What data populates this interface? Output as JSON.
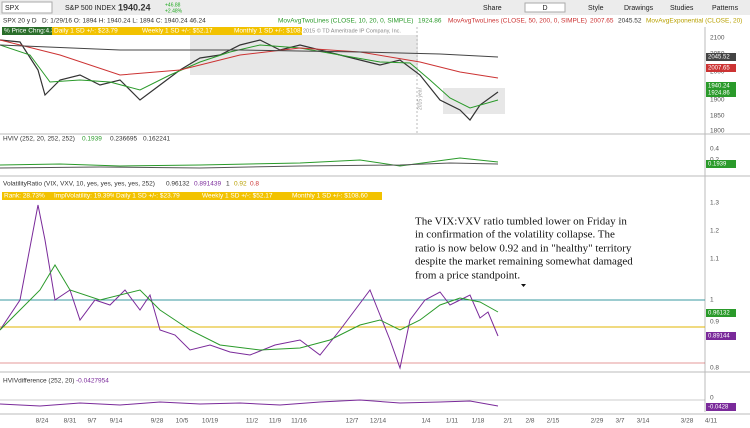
{
  "toolbar": {
    "symbol": "SPX",
    "name": "S&P 500 INDEX",
    "last": "1940.24",
    "change": "+46.88",
    "change_pct": "+2.48%",
    "timeframe": "D",
    "buttons": [
      "Share",
      "Style",
      "Drawings",
      "Studies",
      "Patterns"
    ]
  },
  "info": {
    "chart": "SPX 20 y D",
    "ohlc": "D: 1/29/16  O: 1894  H: 1940.24  L: 1894  C: 1940.24  46.24",
    "studies": [
      {
        "name": "MovAvgTwoLines (CLOSE, 10, 20, 0, SIMPLE)",
        "values": [
          "1924.86"
        ]
      },
      {
        "name": "MovAvgTwoLines (CLOSE, 50, 200, 0, SIMPLE)",
        "values": [
          "2007.65",
          "2045.52"
        ]
      },
      {
        "name": "MovAvgExponential (CLOSE, 20)",
        "values": []
      }
    ]
  },
  "price_panel": {
    "labels": [
      "% Price Chng:4.35",
      "Daily 1 SD +/-: $23.79",
      "Weekly 1 SD +/-: $52.17",
      "Monthly 1 SD +/-: $108.60"
    ],
    "copyright": "2015 © TD Ameritrade IP Company, Inc.",
    "axis": [
      "2100",
      "2050",
      "2000",
      "1950",
      "1900",
      "1850",
      "1800"
    ],
    "tags": [
      "2045.52",
      "2007.65",
      "1940.24",
      "1924.86"
    ],
    "marker": "2015 year"
  },
  "hviv_panel": {
    "title": "HVIV (252, 20, 252, 252)",
    "values": [
      "0.1939",
      "0.236695",
      "0.162241"
    ],
    "axis": [
      "0.4",
      "0.2"
    ],
    "tag": "0.1939"
  },
  "ratio_panel": {
    "title": "VolatilityRatio (VIX, VXV, 10, yes, yes, yes, yes, 252)",
    "values": [
      "0.96132",
      "0.891439",
      "1",
      "0.92",
      "0.8"
    ],
    "labels": [
      "Rank: 28.73%",
      "ImplVolatility: 19.39%",
      "Daily 1 SD +/-: $23.79",
      "Weekly 1 SD +/-: $52.17",
      "Monthly 1 SD +/-: $108.60"
    ],
    "axis": [
      "1.3",
      "1.2",
      "1.1",
      "1",
      "0.9",
      "0.8"
    ],
    "tags": [
      "0.96132",
      "0.89144"
    ],
    "annotation": [
      "The VIX:VXV ratio tumbled lower on Friday in",
      "in confirmation of the volatility collapse.  The",
      "ratio is now below 0.92 and in \"healthy\" territory",
      "despite the market remaining somewhat damaged",
      "from a price standpoint."
    ]
  },
  "diff_panel": {
    "title": "HVIVdifference (252, 20)",
    "value": "-0.0427954",
    "axis": [
      "0"
    ],
    "tag": "-0.0428"
  },
  "dates": [
    "8/24",
    "8/31",
    "9/7",
    "9/14",
    "9/28",
    "10/5",
    "10/19",
    "11/2",
    "11/9",
    "11/16",
    "12/7",
    "12/14",
    "1/4",
    "1/11",
    "1/18",
    "2/1",
    "2/8",
    "2/15",
    "2/29",
    "3/7",
    "3/14",
    "3/28",
    "4/11"
  ]
}
